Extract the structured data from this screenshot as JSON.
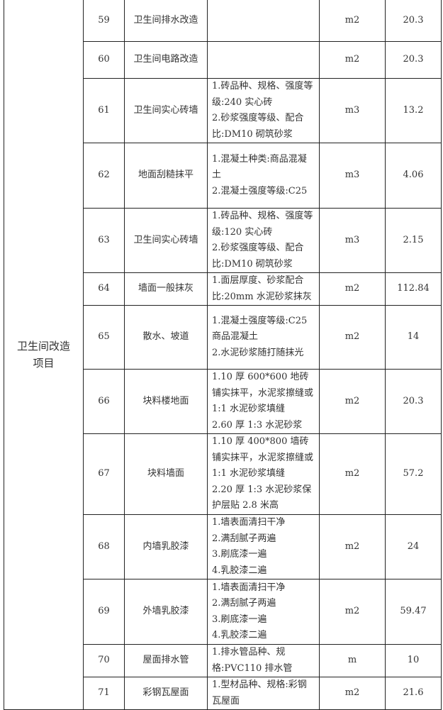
{
  "category": "卫生间改造\n项目",
  "rows": [
    {
      "no": "59",
      "name": "卫生间排水改造",
      "desc": "",
      "unit": "m2",
      "qty": "20.3"
    },
    {
      "no": "60",
      "name": "卫生间电路改造",
      "desc": "",
      "unit": "m2",
      "qty": "20.3"
    },
    {
      "no": "61",
      "name": "卫生间实心砖墙",
      "desc": "1.砖品种、规格、强度等级:240 实心砖\n2.砂浆强度等级、配合比:DM10 砌筑砂浆",
      "unit": "m3",
      "qty": "13.2"
    },
    {
      "no": "62",
      "name": "地面刮糙抹平",
      "desc": "1.混凝土种类:商品混凝土\n2.混凝土强度等级:C25",
      "unit": "m3",
      "qty": "4.06"
    },
    {
      "no": "63",
      "name": "卫生间实心砖墙",
      "desc": "1.砖品种、规格、强度等级:120 实心砖\n2.砂浆强度等级、配合比:DM10 砌筑砂浆",
      "unit": "m3",
      "qty": "2.15"
    },
    {
      "no": "64",
      "name": "墙面一般抹灰",
      "desc": "1.面层厚度、砂浆配合比:20mm 水泥砂浆抹灰",
      "unit": "m2",
      "qty": "112.84"
    },
    {
      "no": "65",
      "name": "散水、坡道",
      "desc": "1.混凝土强度等级:C25 商品混凝土\n2.水泥砂浆随打随抹光",
      "unit": "m2",
      "qty": "14"
    },
    {
      "no": "66",
      "name": "块料楼地面",
      "desc": "1.10 厚 600*600 地砖铺实抹平，水泥浆擦缝或 1:1 水泥砂浆填缝\n2.60 厚 1:3 水泥砂浆",
      "unit": "m2",
      "qty": "20.3"
    },
    {
      "no": "67",
      "name": "块料墙面",
      "desc": "1.10 厚 400*800 墙砖铺实抹平，水泥浆擦缝或 1:1 水泥砂浆填缝\n2.20 厚 1:3 水泥砂浆保护层贴 2.8 米高",
      "unit": "m2",
      "qty": "57.2"
    },
    {
      "no": "68",
      "name": "内墙乳胶漆",
      "desc": "1.墙表面清扫干净\n2.满刮腻子两遍\n3.刷底漆一遍\n4.乳胶漆二遍",
      "unit": "m2",
      "qty": "24"
    },
    {
      "no": "69",
      "name": "外墙乳胶漆",
      "desc": "1.墙表面清扫干净\n2.满刮腻子两遍\n3.刷底漆一遍\n4.乳胶漆二遍",
      "unit": "m2",
      "qty": "59.47"
    },
    {
      "no": "70",
      "name": "屋面排水管",
      "desc": "1.排水管品种、规格:PVC110 排水管",
      "unit": "m",
      "qty": "10"
    },
    {
      "no": "71",
      "name": "彩钢瓦屋面",
      "desc": "1.型材品种、规格:彩钢瓦屋面",
      "unit": "m2",
      "qty": "21.6"
    }
  ]
}
